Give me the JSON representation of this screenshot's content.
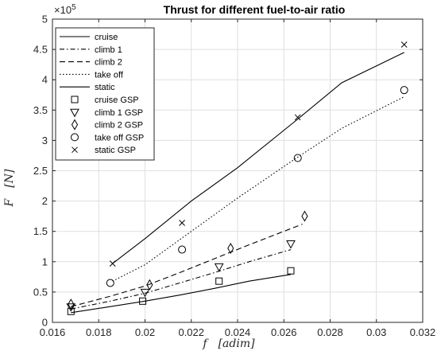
{
  "chart_data": {
    "type": "line",
    "title": "Thrust for different fuel-to-air ratio",
    "xlabel": "f",
    "xunit": "[adim]",
    "ylabel": "F",
    "yunit": "[N]",
    "exponent_label": "×10",
    "exponent_power": "5",
    "xlim": [
      0.016,
      0.032
    ],
    "ylim": [
      0,
      5
    ],
    "xticks": [
      0.016,
      0.018,
      0.02,
      0.022,
      0.024,
      0.026,
      0.028,
      0.03,
      0.032
    ],
    "xtick_labels": [
      "0.016",
      "0.018",
      "0.02",
      "0.022",
      "0.024",
      "0.026",
      "0.028",
      "0.03",
      "0.032"
    ],
    "yticks": [
      0,
      0.5,
      1,
      1.5,
      2,
      2.5,
      3,
      3.5,
      4,
      4.5,
      5
    ],
    "ytick_labels": [
      "0",
      "0.5",
      "1",
      "1.5",
      "2",
      "2.5",
      "3",
      "3.5",
      "4",
      "4.5",
      "5"
    ],
    "grid": true,
    "legend_position": "top-left",
    "series": [
      {
        "name": "cruise",
        "kind": "line",
        "dash": "solid",
        "x": [
          0.0168,
          0.0185,
          0.02,
          0.0215,
          0.023,
          0.0245,
          0.0263
        ],
        "y": [
          0.16,
          0.26,
          0.35,
          0.45,
          0.56,
          0.68,
          0.79
        ]
      },
      {
        "name": "climb 1",
        "kind": "line",
        "dash": "dashdot",
        "x": [
          0.0168,
          0.0185,
          0.02,
          0.0215,
          0.023,
          0.0245,
          0.0263
        ],
        "y": [
          0.22,
          0.35,
          0.48,
          0.65,
          0.82,
          1.0,
          1.2
        ]
      },
      {
        "name": "climb 2",
        "kind": "line",
        "dash": "dashed",
        "x": [
          0.0168,
          0.0185,
          0.02,
          0.0215,
          0.023,
          0.0245,
          0.0268
        ],
        "y": [
          0.26,
          0.43,
          0.6,
          0.82,
          1.05,
          1.28,
          1.62
        ]
      },
      {
        "name": "take off",
        "kind": "line",
        "dash": "dotted",
        "x": [
          0.0186,
          0.02,
          0.022,
          0.024,
          0.0265,
          0.0285,
          0.0312
        ],
        "y": [
          0.68,
          0.95,
          1.5,
          2.05,
          2.7,
          3.2,
          3.72
        ]
      },
      {
        "name": "static",
        "kind": "line",
        "dash": "solid",
        "x": [
          0.0186,
          0.02,
          0.022,
          0.024,
          0.0265,
          0.0285,
          0.0312
        ],
        "y": [
          0.97,
          1.38,
          2.0,
          2.55,
          3.32,
          3.95,
          4.45
        ]
      },
      {
        "name": "cruise GSP",
        "kind": "marker",
        "marker": "square",
        "x": [
          0.0168,
          0.0199,
          0.0232,
          0.0263
        ],
        "y": [
          0.18,
          0.35,
          0.68,
          0.85
        ]
      },
      {
        "name": "climb 1 GSP",
        "kind": "marker",
        "marker": "triangle-down",
        "x": [
          0.0168,
          0.02,
          0.0232,
          0.0263
        ],
        "y": [
          0.26,
          0.5,
          0.92,
          1.3
        ]
      },
      {
        "name": "climb 2 GSP",
        "kind": "marker",
        "marker": "diamond",
        "x": [
          0.0168,
          0.0202,
          0.0237,
          0.0269
        ],
        "y": [
          0.3,
          0.62,
          1.22,
          1.75
        ]
      },
      {
        "name": "take off GSP",
        "kind": "marker",
        "marker": "circle",
        "x": [
          0.0185,
          0.0216,
          0.0266,
          0.0312
        ],
        "y": [
          0.65,
          1.2,
          2.71,
          3.83
        ]
      },
      {
        "name": "static GSP",
        "kind": "marker",
        "marker": "x",
        "x": [
          0.0186,
          0.0216,
          0.0266,
          0.0312
        ],
        "y": [
          0.97,
          1.64,
          3.38,
          4.58
        ]
      }
    ]
  }
}
